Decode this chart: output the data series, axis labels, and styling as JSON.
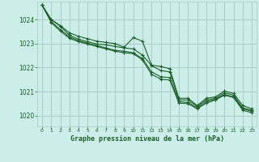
{
  "title": "Graphe pression niveau de la mer (hPa)",
  "bg_color": "#cceee8",
  "grid_color": "#aaccc4",
  "line_color": "#1a5e2a",
  "x_ticks": [
    0,
    1,
    2,
    3,
    4,
    5,
    6,
    7,
    8,
    9,
    10,
    11,
    12,
    13,
    14,
    15,
    16,
    17,
    18,
    19,
    20,
    21,
    22,
    23
  ],
  "y_ticks": [
    1020,
    1021,
    1022,
    1023,
    1024
  ],
  "ylim": [
    1019.55,
    1024.75
  ],
  "xlim": [
    -0.5,
    23.5
  ],
  "series": [
    [
      1024.6,
      1024.0,
      1023.75,
      1023.45,
      1023.3,
      1023.2,
      1023.1,
      1023.05,
      1023.0,
      1022.85,
      1023.25,
      1023.1,
      1022.1,
      1022.05,
      1021.95,
      1020.72,
      1020.72,
      1020.42,
      1020.72,
      1020.78,
      1021.02,
      1020.92,
      1020.42,
      1020.28
    ],
    [
      1024.6,
      1024.0,
      1023.72,
      1023.35,
      1023.18,
      1023.08,
      1022.98,
      1022.95,
      1022.88,
      1022.82,
      1022.78,
      1022.52,
      1022.08,
      1021.88,
      1021.82,
      1020.65,
      1020.65,
      1020.38,
      1020.65,
      1020.72,
      1020.95,
      1020.85,
      1020.32,
      1020.22
    ],
    [
      1024.6,
      1023.92,
      1023.58,
      1023.28,
      1023.12,
      1023.02,
      1022.92,
      1022.82,
      1022.72,
      1022.68,
      1022.62,
      1022.38,
      1021.82,
      1021.62,
      1021.58,
      1020.58,
      1020.55,
      1020.32,
      1020.58,
      1020.68,
      1020.88,
      1020.78,
      1020.28,
      1020.18
    ],
    [
      1024.6,
      1023.88,
      1023.52,
      1023.22,
      1023.08,
      1022.98,
      1022.88,
      1022.78,
      1022.68,
      1022.62,
      1022.58,
      1022.32,
      1021.72,
      1021.52,
      1021.48,
      1020.52,
      1020.5,
      1020.28,
      1020.52,
      1020.65,
      1020.85,
      1020.75,
      1020.22,
      1020.12
    ]
  ]
}
